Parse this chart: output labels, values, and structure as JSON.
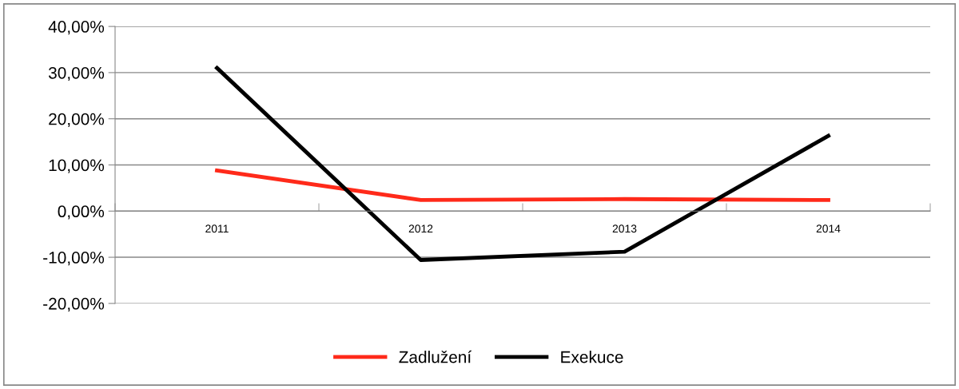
{
  "chart_data": {
    "type": "line",
    "categories": [
      "2011",
      "2012",
      "2013",
      "2014"
    ],
    "series": [
      {
        "name": "Zadlužení",
        "color": "#ff2a1a",
        "values": [
          8.8,
          2.4,
          2.6,
          2.4
        ]
      },
      {
        "name": "Exekuce",
        "color": "#000000",
        "values": [
          31.0,
          -10.6,
          -8.8,
          16.3
        ]
      }
    ],
    "ylim": [
      -20,
      40
    ],
    "yticks": [
      {
        "value": -20,
        "label": "-20,00%"
      },
      {
        "value": -10,
        "label": "-10,00%"
      },
      {
        "value": 0,
        "label": "0,00%"
      },
      {
        "value": 10,
        "label": "10,00%"
      },
      {
        "value": 20,
        "label": "20,00%"
      },
      {
        "value": 30,
        "label": "30,00%"
      },
      {
        "value": 40,
        "label": "40,00%"
      }
    ],
    "grid": "y",
    "legend": "bottom",
    "marker": "none",
    "line_style": "solid"
  }
}
